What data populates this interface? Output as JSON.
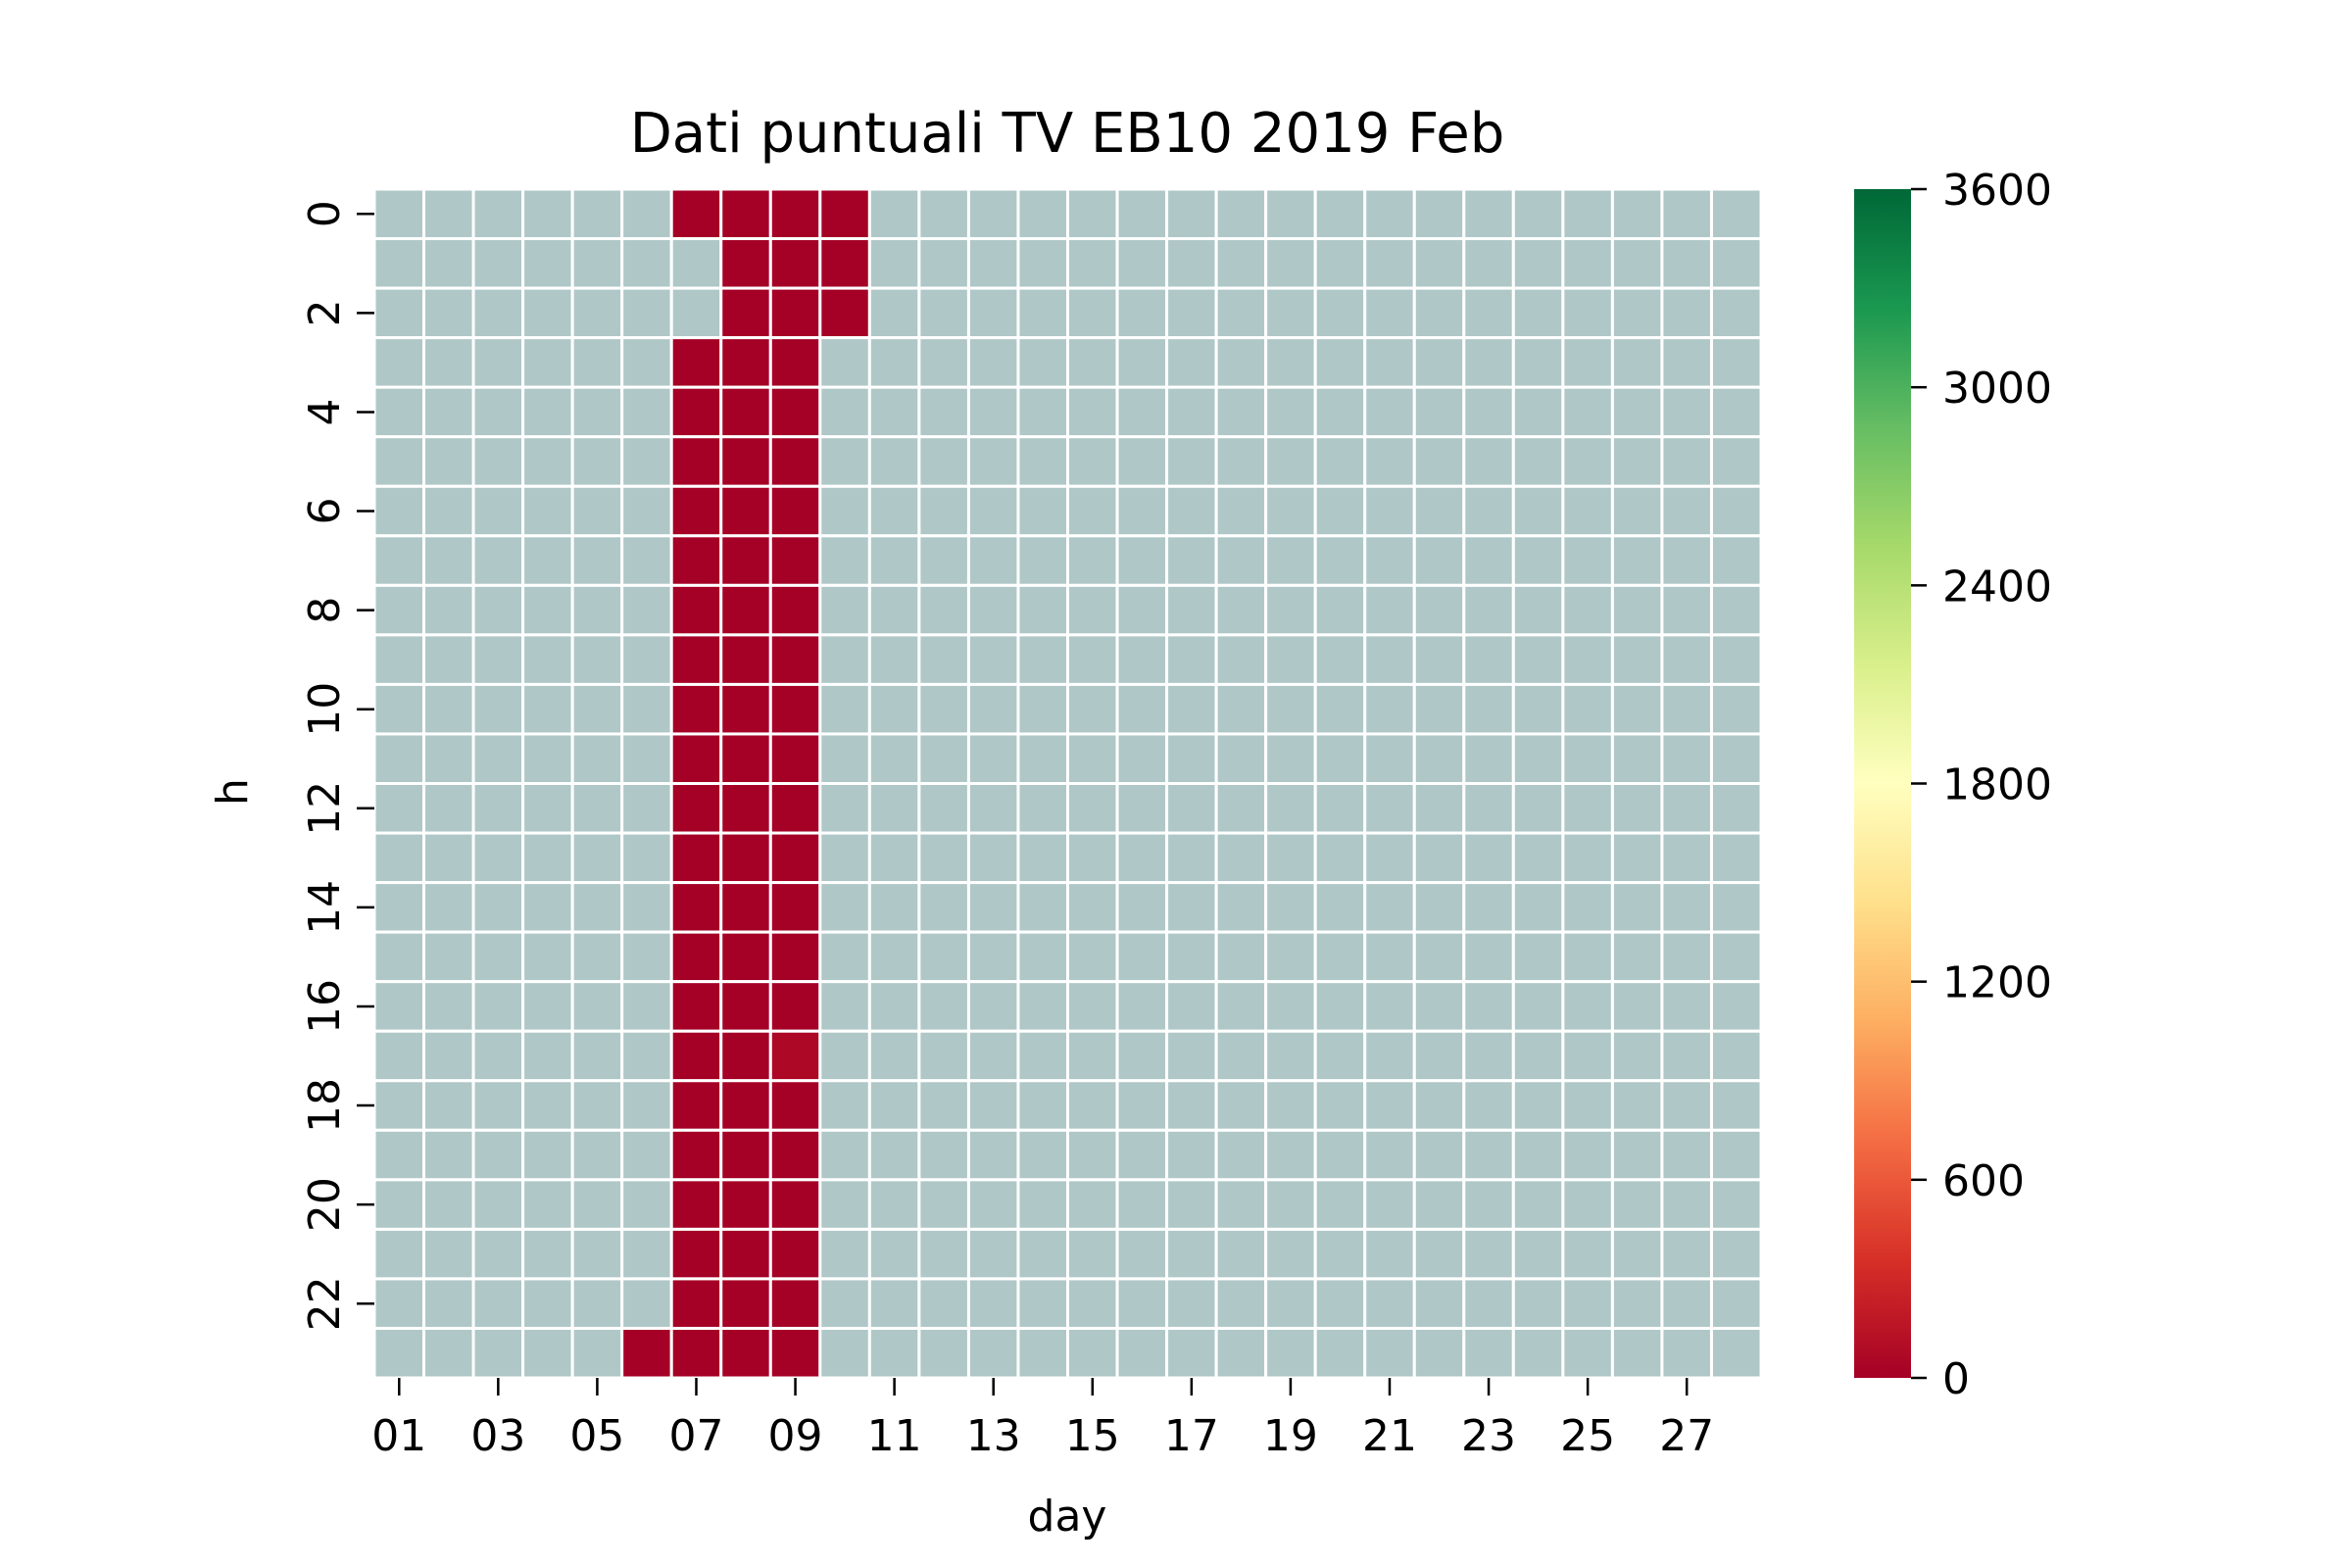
{
  "chart_data": {
    "type": "heatmap",
    "title": "Dati puntuali TV EB10 2019 Feb",
    "xlabel": "day",
    "ylabel": "h",
    "x_categories": [
      "01",
      "02",
      "03",
      "04",
      "05",
      "06",
      "07",
      "08",
      "09",
      "10",
      "11",
      "12",
      "13",
      "14",
      "15",
      "16",
      "17",
      "18",
      "19",
      "20",
      "21",
      "22",
      "23",
      "24",
      "25",
      "26",
      "27",
      "28"
    ],
    "x_tick_labels": [
      "01",
      "03",
      "05",
      "07",
      "09",
      "11",
      "13",
      "15",
      "17",
      "19",
      "21",
      "23",
      "25",
      "27"
    ],
    "y_categories": [
      0,
      1,
      2,
      3,
      4,
      5,
      6,
      7,
      8,
      9,
      10,
      11,
      12,
      13,
      14,
      15,
      16,
      17,
      18,
      19,
      20,
      21,
      22,
      23
    ],
    "y_tick_labels": [
      "0",
      "2",
      "4",
      "6",
      "8",
      "10",
      "12",
      "14",
      "16",
      "18",
      "20",
      "22"
    ],
    "colorbar": {
      "colormap": "RdYlGn",
      "vmin": 0,
      "vmax": 3600,
      "ticks": [
        0,
        600,
        1200,
        1800,
        2400,
        3000,
        3600
      ]
    },
    "missing_color": "#b0c7c7",
    "grid": false,
    "cells": [
      {
        "day": "06",
        "hour": 23,
        "value": 0
      },
      {
        "day": "07",
        "hour": 0,
        "value": 0
      },
      {
        "day": "07",
        "hour": 3,
        "value": 0
      },
      {
        "day": "07",
        "hour": 4,
        "value": 0
      },
      {
        "day": "07",
        "hour": 5,
        "value": 0
      },
      {
        "day": "07",
        "hour": 6,
        "value": 0
      },
      {
        "day": "07",
        "hour": 7,
        "value": 0
      },
      {
        "day": "07",
        "hour": 8,
        "value": 0
      },
      {
        "day": "07",
        "hour": 9,
        "value": 0
      },
      {
        "day": "07",
        "hour": 10,
        "value": 0
      },
      {
        "day": "07",
        "hour": 11,
        "value": 0
      },
      {
        "day": "07",
        "hour": 12,
        "value": 0
      },
      {
        "day": "07",
        "hour": 13,
        "value": 0
      },
      {
        "day": "07",
        "hour": 14,
        "value": 0
      },
      {
        "day": "07",
        "hour": 15,
        "value": 0
      },
      {
        "day": "07",
        "hour": 16,
        "value": 0
      },
      {
        "day": "07",
        "hour": 17,
        "value": 0
      },
      {
        "day": "07",
        "hour": 18,
        "value": 0
      },
      {
        "day": "07",
        "hour": 19,
        "value": 0
      },
      {
        "day": "07",
        "hour": 20,
        "value": 0
      },
      {
        "day": "07",
        "hour": 21,
        "value": 0
      },
      {
        "day": "07",
        "hour": 22,
        "value": 0
      },
      {
        "day": "07",
        "hour": 23,
        "value": 0
      },
      {
        "day": "08",
        "hour": 0,
        "value": 0
      },
      {
        "day": "08",
        "hour": 1,
        "value": 0
      },
      {
        "day": "08",
        "hour": 2,
        "value": 0
      },
      {
        "day": "08",
        "hour": 3,
        "value": 0
      },
      {
        "day": "08",
        "hour": 4,
        "value": 0
      },
      {
        "day": "08",
        "hour": 5,
        "value": 0
      },
      {
        "day": "08",
        "hour": 6,
        "value": 0
      },
      {
        "day": "08",
        "hour": 7,
        "value": 0
      },
      {
        "day": "08",
        "hour": 8,
        "value": 0
      },
      {
        "day": "08",
        "hour": 9,
        "value": 0
      },
      {
        "day": "08",
        "hour": 10,
        "value": 0
      },
      {
        "day": "08",
        "hour": 11,
        "value": 0
      },
      {
        "day": "08",
        "hour": 12,
        "value": 0
      },
      {
        "day": "08",
        "hour": 13,
        "value": 0
      },
      {
        "day": "08",
        "hour": 14,
        "value": 0
      },
      {
        "day": "08",
        "hour": 15,
        "value": 0
      },
      {
        "day": "08",
        "hour": 16,
        "value": 0
      },
      {
        "day": "08",
        "hour": 17,
        "value": 0
      },
      {
        "day": "08",
        "hour": 18,
        "value": 0
      },
      {
        "day": "08",
        "hour": 19,
        "value": 0
      },
      {
        "day": "08",
        "hour": 20,
        "value": 0
      },
      {
        "day": "08",
        "hour": 21,
        "value": 0
      },
      {
        "day": "08",
        "hour": 22,
        "value": 0
      },
      {
        "day": "08",
        "hour": 23,
        "value": 0
      },
      {
        "day": "09",
        "hour": 0,
        "value": 0
      },
      {
        "day": "09",
        "hour": 1,
        "value": 0
      },
      {
        "day": "09",
        "hour": 2,
        "value": 0
      },
      {
        "day": "09",
        "hour": 3,
        "value": 0
      },
      {
        "day": "09",
        "hour": 4,
        "value": 0
      },
      {
        "day": "09",
        "hour": 5,
        "value": 0
      },
      {
        "day": "09",
        "hour": 6,
        "value": 0
      },
      {
        "day": "09",
        "hour": 7,
        "value": 0
      },
      {
        "day": "09",
        "hour": 8,
        "value": 0
      },
      {
        "day": "09",
        "hour": 9,
        "value": 0
      },
      {
        "day": "09",
        "hour": 10,
        "value": 0
      },
      {
        "day": "09",
        "hour": 11,
        "value": 0
      },
      {
        "day": "09",
        "hour": 12,
        "value": 0
      },
      {
        "day": "09",
        "hour": 13,
        "value": 0
      },
      {
        "day": "09",
        "hour": 14,
        "value": 0
      },
      {
        "day": "09",
        "hour": 15,
        "value": 0
      },
      {
        "day": "09",
        "hour": 16,
        "value": 0
      },
      {
        "day": "09",
        "hour": 17,
        "value": 60
      },
      {
        "day": "09",
        "hour": 18,
        "value": 0
      },
      {
        "day": "09",
        "hour": 19,
        "value": 0
      },
      {
        "day": "09",
        "hour": 20,
        "value": 0
      },
      {
        "day": "09",
        "hour": 21,
        "value": 0
      },
      {
        "day": "09",
        "hour": 22,
        "value": 0
      },
      {
        "day": "09",
        "hour": 23,
        "value": 0
      },
      {
        "day": "10",
        "hour": 0,
        "value": 0
      },
      {
        "day": "10",
        "hour": 1,
        "value": 0
      },
      {
        "day": "10",
        "hour": 2,
        "value": 0
      }
    ]
  }
}
